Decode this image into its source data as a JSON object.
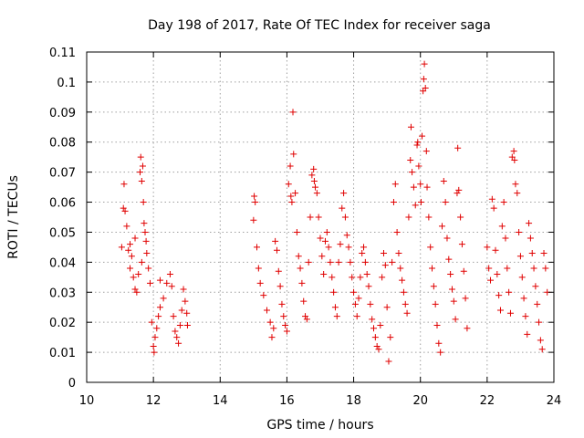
{
  "chart_data": {
    "type": "scatter",
    "title": "Day 198 of 2017, Rate Of TEC Index for receiver saga",
    "xlabel": "GPS time / hours",
    "ylabel": "ROTI / TECUs",
    "xlim": [
      10,
      24
    ],
    "ylim": [
      0,
      0.11
    ],
    "xticks": [
      "10",
      "12",
      "14",
      "16",
      "18",
      "20",
      "22",
      "24"
    ],
    "yticks": [
      "0",
      "0.01",
      "0.02",
      "0.03",
      "0.04",
      "0.05",
      "0.06",
      "0.07",
      "0.08",
      "0.09",
      "0.1",
      "0.11"
    ],
    "grid": true,
    "marker": "plus",
    "color": "#e00000",
    "series": [
      {
        "name": "ROTI",
        "points": [
          [
            11.05,
            0.045
          ],
          [
            11.1,
            0.058
          ],
          [
            11.12,
            0.066
          ],
          [
            11.15,
            0.057
          ],
          [
            11.2,
            0.052
          ],
          [
            11.25,
            0.044
          ],
          [
            11.3,
            0.038
          ],
          [
            11.35,
            0.042
          ],
          [
            11.4,
            0.035
          ],
          [
            11.45,
            0.031
          ],
          [
            11.5,
            0.03
          ],
          [
            11.55,
            0.036
          ],
          [
            11.6,
            0.07
          ],
          [
            11.62,
            0.075
          ],
          [
            11.65,
            0.067
          ],
          [
            11.68,
            0.072
          ],
          [
            11.7,
            0.06
          ],
          [
            11.72,
            0.053
          ],
          [
            11.75,
            0.05
          ],
          [
            11.78,
            0.047
          ],
          [
            11.8,
            0.043
          ],
          [
            11.85,
            0.038
          ],
          [
            11.9,
            0.033
          ],
          [
            11.95,
            0.02
          ],
          [
            12.0,
            0.012
          ],
          [
            12.02,
            0.01
          ],
          [
            12.05,
            0.015
          ],
          [
            12.1,
            0.018
          ],
          [
            12.15,
            0.022
          ],
          [
            12.2,
            0.025
          ],
          [
            12.3,
            0.028
          ],
          [
            12.4,
            0.033
          ],
          [
            12.5,
            0.036
          ],
          [
            12.55,
            0.032
          ],
          [
            12.6,
            0.022
          ],
          [
            12.65,
            0.017
          ],
          [
            12.7,
            0.015
          ],
          [
            12.75,
            0.013
          ],
          [
            12.8,
            0.019
          ],
          [
            12.85,
            0.024
          ],
          [
            12.9,
            0.031
          ],
          [
            12.95,
            0.027
          ],
          [
            13.0,
            0.023
          ],
          [
            13.02,
            0.019
          ],
          [
            11.3,
            0.046
          ],
          [
            11.45,
            0.048
          ],
          [
            11.65,
            0.04
          ],
          [
            12.2,
            0.034
          ],
          [
            15.0,
            0.054
          ],
          [
            15.02,
            0.062
          ],
          [
            15.05,
            0.06
          ],
          [
            15.1,
            0.045
          ],
          [
            15.15,
            0.038
          ],
          [
            15.2,
            0.033
          ],
          [
            15.3,
            0.029
          ],
          [
            15.4,
            0.024
          ],
          [
            15.5,
            0.02
          ],
          [
            15.55,
            0.015
          ],
          [
            15.6,
            0.018
          ],
          [
            15.65,
            0.047
          ],
          [
            15.7,
            0.044
          ],
          [
            15.75,
            0.037
          ],
          [
            15.8,
            0.032
          ],
          [
            15.85,
            0.026
          ],
          [
            15.9,
            0.022
          ],
          [
            15.95,
            0.019
          ],
          [
            16.0,
            0.017
          ],
          [
            16.05,
            0.066
          ],
          [
            16.1,
            0.072
          ],
          [
            16.12,
            0.062
          ],
          [
            16.15,
            0.06
          ],
          [
            16.18,
            0.09
          ],
          [
            16.2,
            0.076
          ],
          [
            16.25,
            0.063
          ],
          [
            16.3,
            0.05
          ],
          [
            16.35,
            0.042
          ],
          [
            16.4,
            0.038
          ],
          [
            16.45,
            0.033
          ],
          [
            16.5,
            0.027
          ],
          [
            16.55,
            0.022
          ],
          [
            16.6,
            0.021
          ],
          [
            16.65,
            0.04
          ],
          [
            16.7,
            0.055
          ],
          [
            16.75,
            0.069
          ],
          [
            16.8,
            0.071
          ],
          [
            16.82,
            0.067
          ],
          [
            16.85,
            0.065
          ],
          [
            16.9,
            0.063
          ],
          [
            16.95,
            0.055
          ],
          [
            17.0,
            0.048
          ],
          [
            17.05,
            0.042
          ],
          [
            17.1,
            0.036
          ],
          [
            17.15,
            0.047
          ],
          [
            17.2,
            0.05
          ],
          [
            17.25,
            0.045
          ],
          [
            17.3,
            0.04
          ],
          [
            17.35,
            0.035
          ],
          [
            17.4,
            0.03
          ],
          [
            17.45,
            0.025
          ],
          [
            17.5,
            0.022
          ],
          [
            17.55,
            0.04
          ],
          [
            17.6,
            0.046
          ],
          [
            17.65,
            0.058
          ],
          [
            17.7,
            0.063
          ],
          [
            17.75,
            0.055
          ],
          [
            17.8,
            0.049
          ],
          [
            17.85,
            0.045
          ],
          [
            17.9,
            0.04
          ],
          [
            17.95,
            0.035
          ],
          [
            18.0,
            0.03
          ],
          [
            18.05,
            0.026
          ],
          [
            18.1,
            0.022
          ],
          [
            18.15,
            0.028
          ],
          [
            18.2,
            0.035
          ],
          [
            18.25,
            0.043
          ],
          [
            18.3,
            0.045
          ],
          [
            18.35,
            0.04
          ],
          [
            18.4,
            0.036
          ],
          [
            18.45,
            0.032
          ],
          [
            18.5,
            0.026
          ],
          [
            18.55,
            0.021
          ],
          [
            18.6,
            0.018
          ],
          [
            18.65,
            0.015
          ],
          [
            18.7,
            0.012
          ],
          [
            18.75,
            0.011
          ],
          [
            18.8,
            0.019
          ],
          [
            18.85,
            0.035
          ],
          [
            18.9,
            0.043
          ],
          [
            18.95,
            0.039
          ],
          [
            19.0,
            0.025
          ],
          [
            19.05,
            0.007
          ],
          [
            19.1,
            0.015
          ],
          [
            19.15,
            0.04
          ],
          [
            19.2,
            0.06
          ],
          [
            19.25,
            0.066
          ],
          [
            19.3,
            0.05
          ],
          [
            19.35,
            0.043
          ],
          [
            19.4,
            0.038
          ],
          [
            19.45,
            0.034
          ],
          [
            19.5,
            0.03
          ],
          [
            19.55,
            0.026
          ],
          [
            19.6,
            0.023
          ],
          [
            19.65,
            0.055
          ],
          [
            19.7,
            0.074
          ],
          [
            19.72,
            0.085
          ],
          [
            19.75,
            0.07
          ],
          [
            19.8,
            0.065
          ],
          [
            19.85,
            0.059
          ],
          [
            19.9,
            0.079
          ],
          [
            19.92,
            0.08
          ],
          [
            19.95,
            0.072
          ],
          [
            20.0,
            0.066
          ],
          [
            20.02,
            0.06
          ],
          [
            20.05,
            0.082
          ],
          [
            20.08,
            0.097
          ],
          [
            20.1,
            0.101
          ],
          [
            20.12,
            0.106
          ],
          [
            20.15,
            0.098
          ],
          [
            20.18,
            0.077
          ],
          [
            20.2,
            0.065
          ],
          [
            20.25,
            0.055
          ],
          [
            20.3,
            0.045
          ],
          [
            20.35,
            0.038
          ],
          [
            20.4,
            0.032
          ],
          [
            20.45,
            0.026
          ],
          [
            20.5,
            0.019
          ],
          [
            20.55,
            0.013
          ],
          [
            20.6,
            0.01
          ],
          [
            20.65,
            0.052
          ],
          [
            20.7,
            0.067
          ],
          [
            20.75,
            0.06
          ],
          [
            20.8,
            0.048
          ],
          [
            20.85,
            0.041
          ],
          [
            20.9,
            0.036
          ],
          [
            20.95,
            0.031
          ],
          [
            21.0,
            0.027
          ],
          [
            21.05,
            0.021
          ],
          [
            21.1,
            0.063
          ],
          [
            21.12,
            0.078
          ],
          [
            21.15,
            0.064
          ],
          [
            21.2,
            0.055
          ],
          [
            21.25,
            0.046
          ],
          [
            21.3,
            0.037
          ],
          [
            21.35,
            0.028
          ],
          [
            21.4,
            0.018
          ],
          [
            22.0,
            0.045
          ],
          [
            22.05,
            0.038
          ],
          [
            22.1,
            0.034
          ],
          [
            22.15,
            0.061
          ],
          [
            22.2,
            0.058
          ],
          [
            22.25,
            0.044
          ],
          [
            22.3,
            0.036
          ],
          [
            22.35,
            0.029
          ],
          [
            22.4,
            0.024
          ],
          [
            22.45,
            0.052
          ],
          [
            22.5,
            0.06
          ],
          [
            22.55,
            0.048
          ],
          [
            22.6,
            0.038
          ],
          [
            22.65,
            0.03
          ],
          [
            22.7,
            0.023
          ],
          [
            22.75,
            0.075
          ],
          [
            22.8,
            0.077
          ],
          [
            22.82,
            0.074
          ],
          [
            22.85,
            0.066
          ],
          [
            22.9,
            0.063
          ],
          [
            22.95,
            0.05
          ],
          [
            23.0,
            0.042
          ],
          [
            23.05,
            0.035
          ],
          [
            23.1,
            0.028
          ],
          [
            23.15,
            0.022
          ],
          [
            23.2,
            0.016
          ],
          [
            23.25,
            0.053
          ],
          [
            23.3,
            0.048
          ],
          [
            23.35,
            0.043
          ],
          [
            23.4,
            0.038
          ],
          [
            23.45,
            0.032
          ],
          [
            23.5,
            0.026
          ],
          [
            23.55,
            0.02
          ],
          [
            23.6,
            0.014
          ],
          [
            23.65,
            0.011
          ],
          [
            23.7,
            0.043
          ],
          [
            23.75,
            0.038
          ],
          [
            23.8,
            0.03
          ]
        ]
      }
    ]
  }
}
